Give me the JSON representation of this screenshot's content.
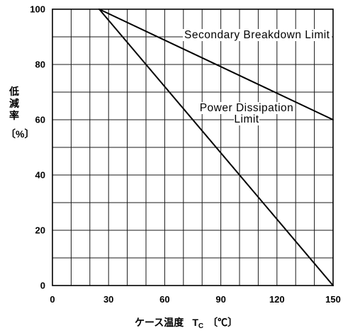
{
  "chart_data": {
    "type": "line",
    "xlabel": "ケース温度",
    "xlabel_symbol": "T",
    "xlabel_symbol_subscript": "C",
    "xlabel_unit": "〔℃〕",
    "ylabel": "低減率",
    "ylabel_unit": "〔%〕",
    "xlim": [
      0,
      150
    ],
    "ylim": [
      0,
      100
    ],
    "xticks": [
      0,
      30,
      60,
      90,
      120,
      150
    ],
    "yticks": [
      0,
      20,
      40,
      60,
      80,
      100
    ],
    "grid": true,
    "grid_step": {
      "x": 10,
      "y": 10
    },
    "series": [
      {
        "name": "Secondary Breakdown Limit",
        "x": [
          25,
          150
        ],
        "y": [
          100,
          60
        ]
      },
      {
        "name": "Power Dissipation Limit",
        "x": [
          25,
          150
        ],
        "y": [
          100,
          0
        ]
      }
    ],
    "colors": {
      "background": "#ffffff",
      "ink": "#000000"
    }
  }
}
